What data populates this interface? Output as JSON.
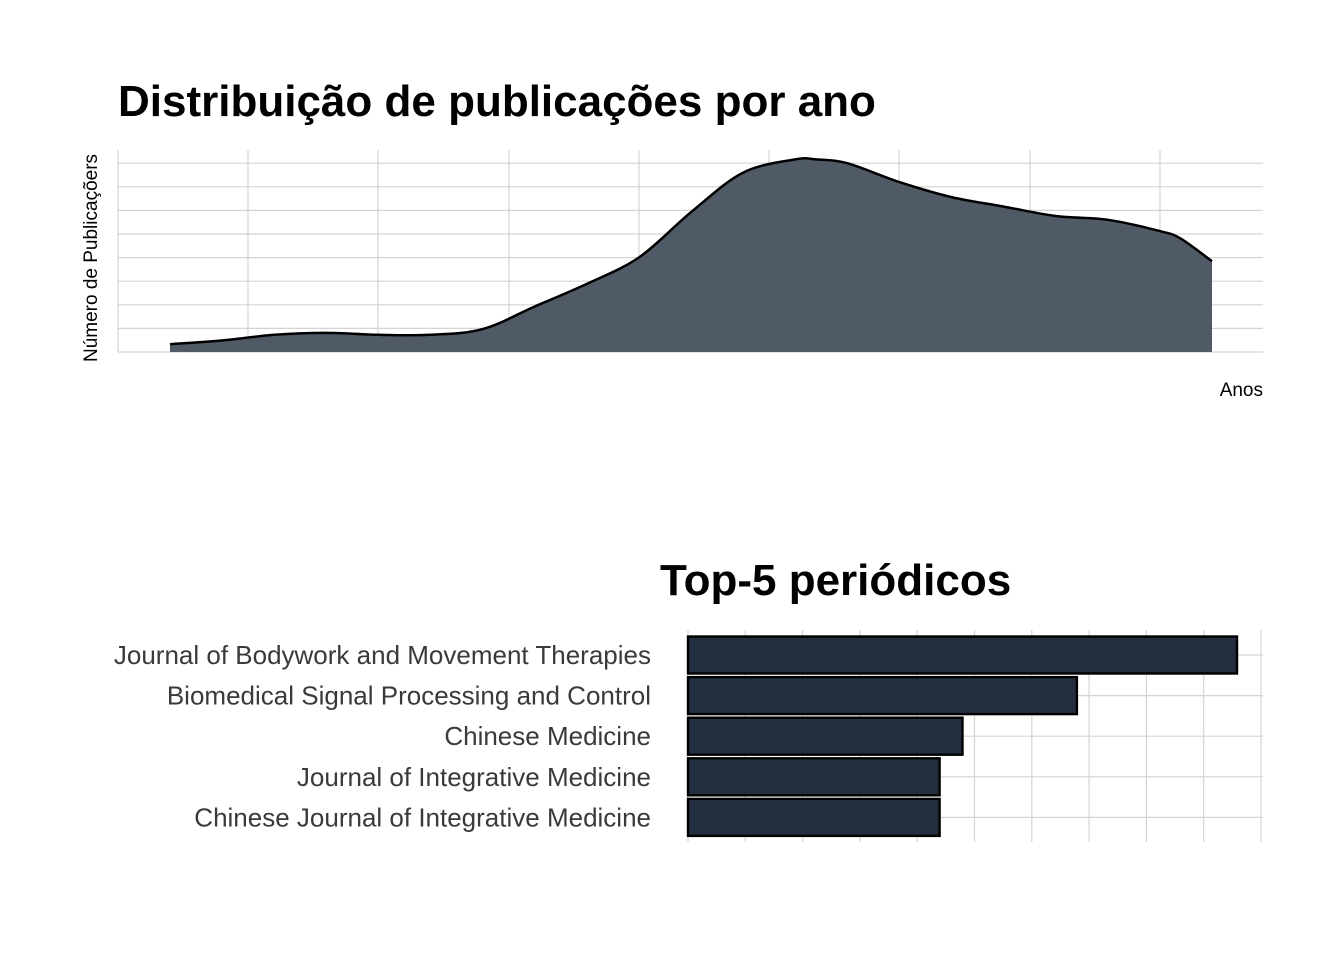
{
  "chart_data": [
    {
      "type": "area",
      "title": "Distribuição de publicações por ano",
      "xlabel": "Anos",
      "ylabel": "Número de Publicaçõers",
      "grid": true,
      "fill_color": "#4f5a66",
      "line_color": "#000000",
      "x": [
        0,
        0.05,
        0.1,
        0.15,
        0.2,
        0.25,
        0.3,
        0.35,
        0.4,
        0.45,
        0.5,
        0.55,
        0.6,
        0.62,
        0.65,
        0.7,
        0.75,
        0.8,
        0.85,
        0.9,
        0.95,
        0.97,
        1.0
      ],
      "y": [
        0.02,
        0.04,
        0.07,
        0.08,
        0.07,
        0.07,
        0.1,
        0.22,
        0.34,
        0.48,
        0.72,
        0.93,
        1.0,
        1.0,
        0.98,
        0.88,
        0.8,
        0.75,
        0.7,
        0.68,
        0.62,
        0.58,
        0.46
      ],
      "ylim": [
        0,
        1.05
      ]
    },
    {
      "type": "bar",
      "orientation": "horizontal",
      "title": "Top-5 periódicos",
      "grid": true,
      "fill_color": "#232f3e",
      "categories": [
        "Journal of Bodywork and Movement Therapies",
        "Biomedical Signal Processing and Control",
        "Chinese Medicine",
        "Journal of Integrative Medicine",
        "Chinese Journal of Integrative Medicine"
      ],
      "values": [
        4.8,
        3.4,
        2.4,
        2.2,
        2.2
      ],
      "xlim": [
        0,
        5
      ]
    }
  ]
}
